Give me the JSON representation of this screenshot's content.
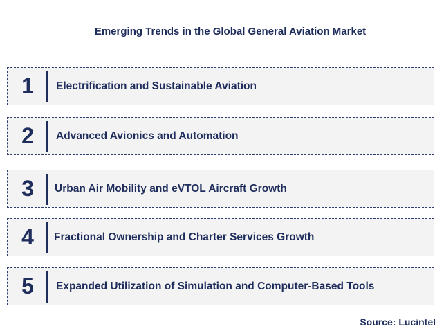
{
  "title": "Emerging Trends in the Global General Aviation Market",
  "trends": [
    {
      "number": "1",
      "label": "Electrification and Sustainable Aviation"
    },
    {
      "number": "2",
      "label": "Advanced Avionics and Automation"
    },
    {
      "number": "3",
      "label": "Urban Air Mobility and eVTOL Aircraft Growth"
    },
    {
      "number": "4",
      "label": "Fractional Ownership and Charter Services Growth"
    },
    {
      "number": "5",
      "label": "Expanded Utilization of Simulation and Computer-Based Tools"
    }
  ],
  "source": "Source: Lucintel",
  "colors": {
    "text": "#1f2d5c",
    "box_fill": "#f3f3f3",
    "box_border": "#2e3e6e"
  }
}
